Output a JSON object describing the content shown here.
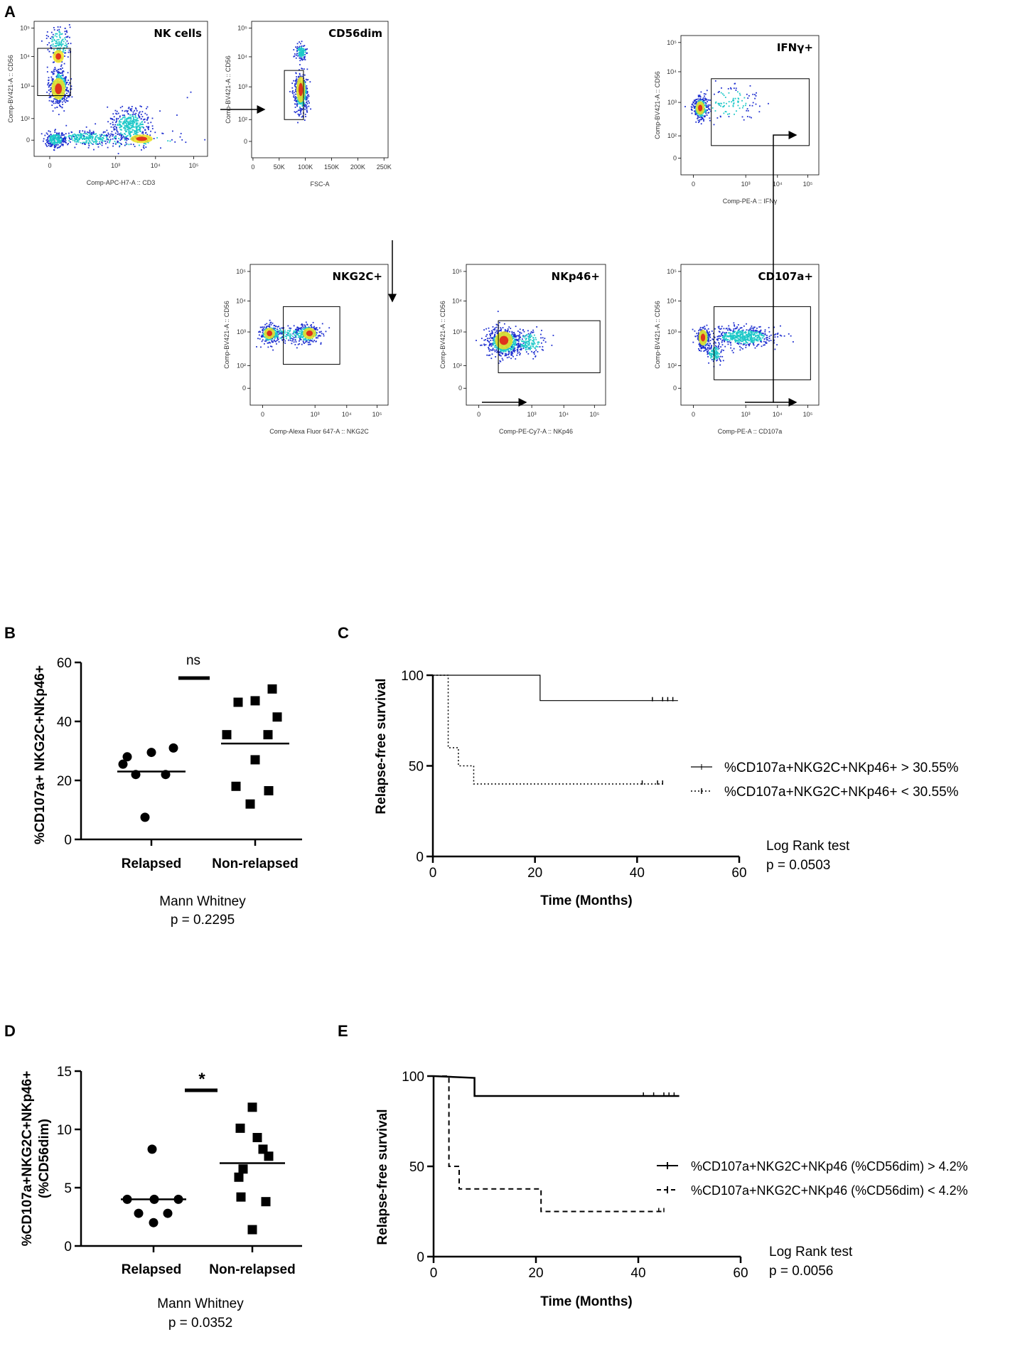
{
  "panel_letters": {
    "A": "A",
    "B": "B",
    "C": "C",
    "D": "D",
    "E": "E"
  },
  "colors": {
    "ink": "#000000",
    "density_low": "#1e2fd0",
    "density_mid": "#1ec8c8",
    "density_high": "#f0e020",
    "density_peak": "#e0201a"
  },
  "flow_plots": [
    {
      "id": "nk",
      "title": "NK cells",
      "xlabel": "Comp-APC-H7-A :: CD3",
      "ylabel": "Comp-BV421-A :: CD56",
      "xticks": [
        "0",
        "10³",
        "10⁴",
        "10⁵"
      ],
      "yticks": [
        "0",
        "10²",
        "10³",
        "10⁴",
        "10⁵"
      ]
    },
    {
      "id": "cd56dim",
      "title": "CD56dim",
      "xlabel": "FSC-A",
      "ylabel": "Comp-BV421-A :: CD56",
      "xticks": [
        "0",
        "50K",
        "100K",
        "150K",
        "200K",
        "250K"
      ],
      "yticks": [
        "0",
        "10²",
        "10³",
        "10⁴",
        "10⁵"
      ]
    },
    {
      "id": "ifny",
      "title": "IFNγ+",
      "xlabel": "Comp-PE-A :: IFNγ",
      "ylabel": "Comp-BV421-A :: CD56",
      "xticks": [
        "0",
        "10³",
        "10⁴",
        "10⁵"
      ],
      "yticks": [
        "0",
        "10²",
        "10³",
        "10⁴",
        "10⁵"
      ]
    },
    {
      "id": "nkg2c",
      "title": "NKG2C+",
      "xlabel": "Comp-Alexa Fluor 647-A :: NKG2C",
      "ylabel": "Comp-BV421-A :: CD56",
      "xticks": [
        "0",
        "10³",
        "10⁴",
        "10⁵"
      ],
      "yticks": [
        "0",
        "10²",
        "10³",
        "10⁴",
        "10⁵"
      ]
    },
    {
      "id": "nkp46",
      "title": "NKp46+",
      "xlabel": "Comp-PE-Cy7-A :: NKp46",
      "ylabel": "Comp-BV421-A :: CD56",
      "xticks": [
        "0",
        "10³",
        "10⁴",
        "10⁵"
      ],
      "yticks": [
        "0",
        "10²",
        "10³",
        "10⁴",
        "10⁵"
      ]
    },
    {
      "id": "cd107a",
      "title": "CD107a+",
      "xlabel": "Comp-PE-A :: CD107a",
      "ylabel": "Comp-BV421-A :: CD56",
      "xticks": [
        "0",
        "10³",
        "10⁴",
        "10⁵"
      ],
      "yticks": [
        "0",
        "10²",
        "10³",
        "10⁴",
        "10⁵"
      ]
    }
  ],
  "chart_data": [
    {
      "panel": "B",
      "type": "scatter",
      "ylabel": "%CD107a+ NKG2C+NKp46+",
      "ylim": [
        0,
        60
      ],
      "yticks": [
        "0",
        "20",
        "40",
        "60"
      ],
      "categories": [
        "Relapsed",
        "Non-relapsed"
      ],
      "series": [
        {
          "name": "Relapsed",
          "marker": "circle",
          "values": [
            28,
            29.5,
            31,
            25.5,
            22,
            22,
            7.5
          ],
          "median": 23
        },
        {
          "name": "Non-relapsed",
          "marker": "square",
          "values": [
            51,
            46.5,
            47,
            41.5,
            35.5,
            35.5,
            27,
            18,
            16.5,
            12
          ],
          "median": 32.5
        }
      ],
      "significance": "ns",
      "test_name": "Mann Whitney",
      "p_text": "p = 0.2295"
    },
    {
      "panel": "C",
      "type": "line",
      "xlabel": "Time (Months)",
      "ylabel": "Relapse-free survival",
      "xlim": [
        0,
        60
      ],
      "ylim": [
        0,
        100
      ],
      "xticks": [
        "0",
        "20",
        "40",
        "60"
      ],
      "yticks": [
        "0",
        "50",
        "100"
      ],
      "series": [
        {
          "name": "%CD107a+NKG2C+NKp46+ > 30.55%",
          "style": "solid",
          "steps": [
            [
              0,
              100
            ],
            [
              21,
              100
            ],
            [
              21,
              86
            ],
            [
              48,
              86
            ]
          ],
          "censored": [
            [
              43,
              86
            ],
            [
              45,
              86
            ],
            [
              46,
              86
            ],
            [
              47,
              86
            ]
          ]
        },
        {
          "name": "%CD107a+NKG2C+NKp46+ < 30.55%",
          "style": "dotted",
          "steps": [
            [
              0,
              100
            ],
            [
              3,
              100
            ],
            [
              3,
              60
            ],
            [
              5,
              60
            ],
            [
              5,
              50
            ],
            [
              8,
              50
            ],
            [
              8,
              40
            ],
            [
              45,
              40
            ]
          ],
          "censored": [
            [
              41,
              40
            ],
            [
              44,
              40
            ],
            [
              45,
              40
            ]
          ]
        }
      ],
      "test_name": "Log Rank test",
      "p_text": "p = 0.0503"
    },
    {
      "panel": "D",
      "type": "scatter",
      "ylabel": "%CD107a+NKG2C+NKp46+",
      "ylabel2": "(%CD56dim)",
      "ylim": [
        0,
        15
      ],
      "yticks": [
        "0",
        "5",
        "10",
        "15"
      ],
      "categories": [
        "Relapsed",
        "Non-relapsed"
      ],
      "series": [
        {
          "name": "Relapsed",
          "marker": "circle",
          "values": [
            8.3,
            4,
            4,
            4,
            2.8,
            2.8,
            2
          ],
          "median": 4
        },
        {
          "name": "Non-relapsed",
          "marker": "square",
          "values": [
            11.9,
            10.1,
            9.3,
            8.3,
            7.7,
            6.6,
            5.9,
            4.2,
            3.8,
            1.4
          ],
          "median": 7.1
        }
      ],
      "significance": "*",
      "test_name": "Mann Whitney",
      "p_text": "p = 0.0352"
    },
    {
      "panel": "E",
      "type": "line",
      "xlabel": "Time (Months)",
      "ylabel": "Relapse-free survival",
      "xlim": [
        0,
        60
      ],
      "ylim": [
        0,
        100
      ],
      "xticks": [
        "0",
        "20",
        "40",
        "60"
      ],
      "yticks": [
        "0",
        "50",
        "100"
      ],
      "series": [
        {
          "name": "%CD107a+NKG2C+NKp46 (%CD56dim) > 4.2%",
          "style": "solid",
          "steps": [
            [
              0,
              100
            ],
            [
              8,
              99
            ],
            [
              8,
              89
            ],
            [
              48,
              89
            ]
          ],
          "censored": [
            [
              41,
              89
            ],
            [
              43,
              89
            ],
            [
              45,
              89
            ],
            [
              46,
              89
            ],
            [
              47,
              89
            ]
          ]
        },
        {
          "name": "%CD107a+NKG2C+NKp46 (%CD56dim) < 4.2%",
          "style": "dashed",
          "steps": [
            [
              0,
              100
            ],
            [
              3,
              100
            ],
            [
              3,
              50
            ],
            [
              5,
              50
            ],
            [
              5,
              37.5
            ],
            [
              21,
              37.5
            ],
            [
              21,
              25
            ],
            [
              45,
              25
            ]
          ],
          "censored": [
            [
              44,
              25
            ],
            [
              45,
              25
            ]
          ]
        }
      ],
      "test_name": "Log Rank test",
      "p_text": "p = 0.0056"
    }
  ]
}
